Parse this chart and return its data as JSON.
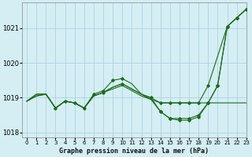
{
  "title": "Graphe pression niveau de la mer (hPa)",
  "bg_color": "#d4eef4",
  "grid_color": "#aaccdd",
  "line_color": "#1a6b1a",
  "xlim": [
    -0.5,
    23
  ],
  "ylim": [
    1017.85,
    1021.75
  ],
  "yticks": [
    1018,
    1019,
    1020,
    1021
  ],
  "xticks": [
    0,
    1,
    2,
    3,
    4,
    5,
    6,
    7,
    8,
    9,
    10,
    11,
    12,
    13,
    14,
    15,
    16,
    17,
    18,
    19,
    20,
    21,
    22,
    23
  ],
  "series": [
    {
      "y": [
        1018.9,
        1019.1,
        1019.1,
        1018.7,
        1018.9,
        1018.85,
        1018.7,
        1019.05,
        1019.15,
        1019.25,
        1019.35,
        1019.2,
        1019.05,
        1018.95,
        1018.85,
        1018.85,
        1018.85,
        1018.85,
        1018.85,
        1018.85,
        1018.85,
        1018.85,
        1018.85,
        1018.85
      ],
      "marker": false,
      "markevery": []
    },
    {
      "y": [
        1018.9,
        1019.05,
        1019.1,
        1018.7,
        1018.9,
        1018.85,
        1018.7,
        1019.05,
        1019.15,
        1019.3,
        1019.4,
        1019.25,
        1019.1,
        1019.0,
        1018.85,
        1018.85,
        1018.85,
        1018.85,
        1018.85,
        1019.35,
        1020.2,
        1021.05,
        1021.3,
        1021.55
      ],
      "marker": true,
      "markevery": [
        8,
        10,
        14,
        15,
        16,
        17,
        18,
        19
      ]
    },
    {
      "y": [
        1018.9,
        1019.05,
        1019.1,
        1018.7,
        1018.9,
        1018.85,
        1018.7,
        1019.05,
        1019.15,
        1019.3,
        1019.4,
        1019.25,
        1019.1,
        1018.95,
        1018.6,
        1018.4,
        1018.4,
        1018.4,
        1018.5,
        1018.85,
        1019.35,
        1021.05,
        1021.3,
        1021.55
      ],
      "marker": true,
      "markevery": [
        14,
        15,
        16,
        17,
        18,
        19,
        20,
        21,
        22,
        23
      ]
    },
    {
      "y": [
        1018.9,
        1019.1,
        1019.1,
        1018.7,
        1018.9,
        1018.85,
        1018.7,
        1019.1,
        1019.2,
        1019.5,
        1019.55,
        1019.4,
        1019.1,
        1019.0,
        1018.6,
        1018.4,
        1018.35,
        1018.35,
        1018.45,
        1018.85,
        1019.35,
        1021.05,
        1021.3,
        1021.55
      ],
      "marker": true,
      "markevery": [
        3,
        4,
        5,
        6,
        7,
        8,
        9,
        10,
        13,
        14,
        15,
        16,
        17,
        18,
        19,
        20,
        21,
        22,
        23
      ]
    }
  ]
}
